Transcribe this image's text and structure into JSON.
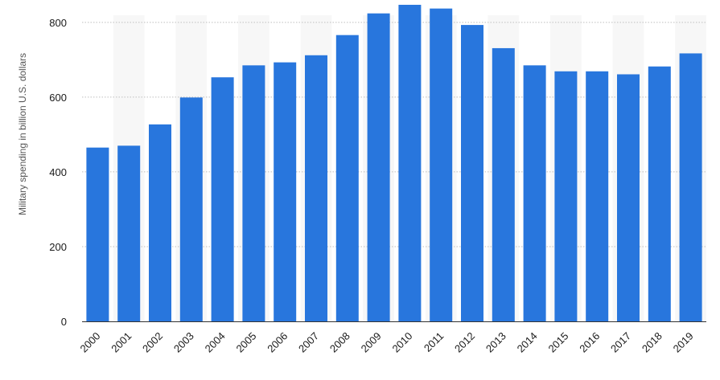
{
  "chart_data": {
    "type": "bar",
    "title": "",
    "xlabel": "",
    "ylabel": "Military spending in billion U.S. dollars",
    "ylim": [
      0,
      900
    ],
    "yticks": [
      0,
      200,
      400,
      600,
      800
    ],
    "grid": true,
    "categories": [
      "2000",
      "2001",
      "2002",
      "2003",
      "2004",
      "2005",
      "2006",
      "2007",
      "2008",
      "2009",
      "2010",
      "2011",
      "2012",
      "2013",
      "2014",
      "2015",
      "2016",
      "2017",
      "2018",
      "2019"
    ],
    "values": [
      465,
      470,
      527,
      599,
      653,
      685,
      693,
      712,
      766,
      824,
      847,
      837,
      793,
      731,
      685,
      669,
      669,
      661,
      682,
      717
    ],
    "bar_color": "#2876dd",
    "band_color": "#f7f7f7",
    "grid_color": "#bfbfbf"
  }
}
